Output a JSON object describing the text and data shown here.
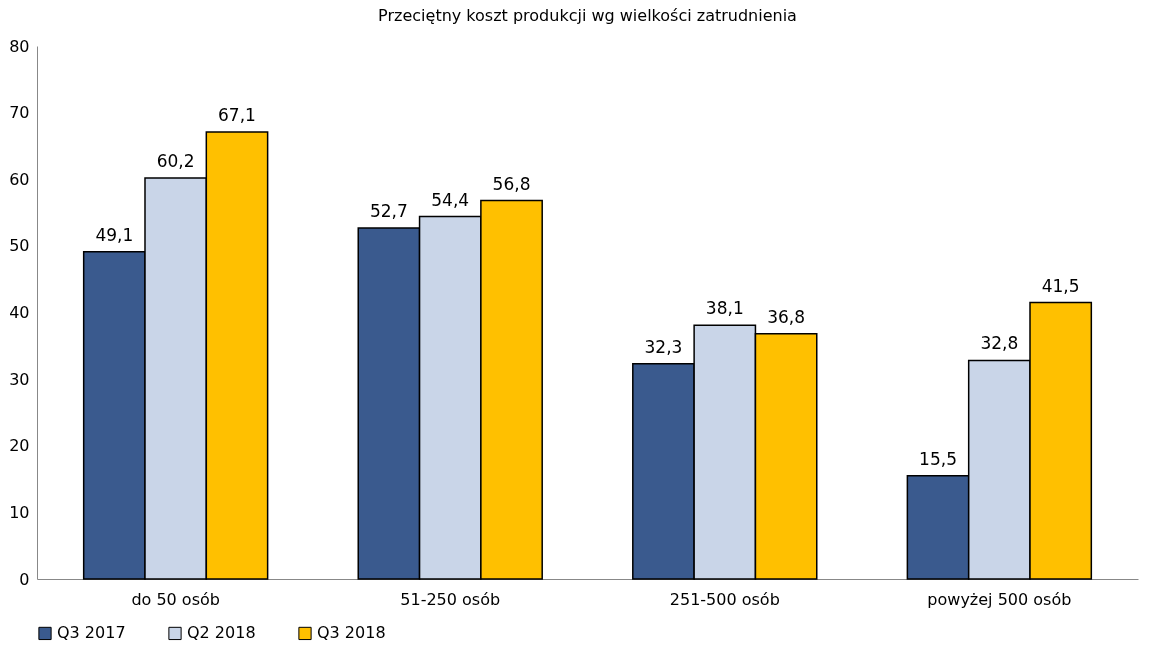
{
  "chart_data": {
    "type": "bar",
    "title": "Przeciętny koszt produkcji wg wielkości zatrudnienia",
    "categories": [
      "do 50 osób",
      "51-250 osób",
      "251-500 osób",
      "powyżej 500 osób"
    ],
    "series": [
      {
        "name": "Q3 2017",
        "color": "#3a5a8e",
        "values": [
          49.1,
          52.7,
          32.3,
          15.5
        ],
        "value_labels": [
          "49,1",
          "52,7",
          "32,3",
          "15,5"
        ]
      },
      {
        "name": "Q2 2018",
        "color": "#c9d5e8",
        "values": [
          60.2,
          54.4,
          38.1,
          32.8
        ],
        "value_labels": [
          "60,2",
          "54,4",
          "38,1",
          "32,8"
        ]
      },
      {
        "name": "Q3 2018",
        "color": "#ffc000",
        "values": [
          67.1,
          56.8,
          36.8,
          41.5
        ],
        "value_labels": [
          "67,1",
          "56,8",
          "36,8",
          "41,5"
        ]
      }
    ],
    "ylim": [
      0,
      80
    ],
    "yticks": [
      0,
      10,
      20,
      30,
      40,
      50,
      60,
      70,
      80
    ],
    "grid": false,
    "legend": "bottom"
  }
}
